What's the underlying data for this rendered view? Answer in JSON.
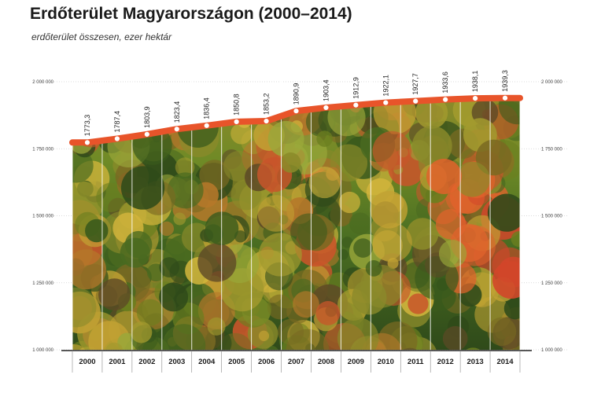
{
  "chart_data": {
    "type": "area",
    "title": "Erdőterület Magyarországon (2000–2014)",
    "subtitle": "erdőterület összesen, ezer hektár",
    "x": [
      "2000",
      "2001",
      "2002",
      "2003",
      "2004",
      "2005",
      "2006",
      "2007",
      "2008",
      "2009",
      "2010",
      "2011",
      "2012",
      "2013",
      "2014"
    ],
    "values": [
      1773.3,
      1787.4,
      1803.9,
      1823.4,
      1836.4,
      1850.8,
      1853.2,
      1890.9,
      1903.4,
      1912.9,
      1922.1,
      1927.7,
      1933.6,
      1938.1,
      1939.3
    ],
    "data_labels": [
      "1773,3",
      "1787,4",
      "1803,9",
      "1823,4",
      "1836,4",
      "1850,8",
      "1853,2",
      "1890,9",
      "1903,4",
      "1912,9",
      "1922,1",
      "1927,7",
      "1933,6",
      "1938,1",
      "1939,3"
    ],
    "ylim": [
      1000000,
      2000000
    ],
    "y_ticks": [
      1000000,
      1250000,
      1500000,
      1750000,
      2000000
    ],
    "y_tick_labels": [
      "1 000 000",
      "1 250 000",
      "1 500 000",
      "1 750 000",
      "2 000 000"
    ],
    "grid": true,
    "line_color": "#e8542a",
    "area_fill": "forest-canopy-photo"
  }
}
